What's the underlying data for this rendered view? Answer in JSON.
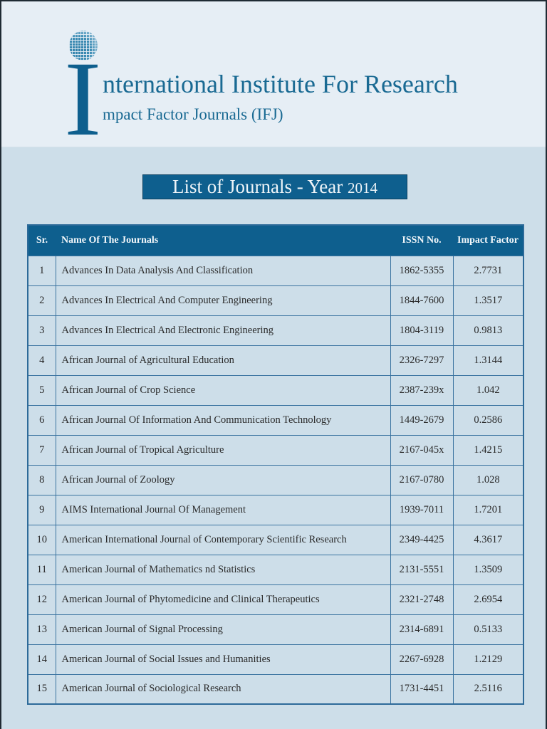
{
  "header": {
    "logo_letter": "I",
    "title_main": "nternational Institute For Research",
    "title_sub": "mpact Factor Journals (IFJ)",
    "logo_icon": "globe-icon",
    "colors": {
      "brand_blue": "#0e5f8e",
      "header_bg": "#e6eef5",
      "page_bg": "#cddee9"
    }
  },
  "list_title": {
    "text": "List of Journals - Year ",
    "year": "2014"
  },
  "table": {
    "columns": [
      "Sr.",
      "Name Of The Journals",
      "ISSN No.",
      "Impact Factor"
    ],
    "rows": [
      {
        "sr": "1",
        "name": "Advances In Data Analysis And Classification",
        "issn": "1862-5355",
        "impact": "2.7731"
      },
      {
        "sr": "2",
        "name": "Advances In Electrical And Computer Engineering",
        "issn": "1844-7600",
        "impact": "1.3517"
      },
      {
        "sr": "3",
        "name": "Advances In Electrical And Electronic Engineering",
        "issn": "1804-3119",
        "impact": "0.9813"
      },
      {
        "sr": "4",
        "name": "African Journal of Agricultural Education",
        "issn": "2326-7297",
        "impact": "1.3144"
      },
      {
        "sr": "5",
        "name": "African Journal of Crop Science",
        "issn": "2387-239x",
        "impact": "1.042"
      },
      {
        "sr": "6",
        "name": "African Journal Of Information And Communication Technology",
        "issn": "1449-2679",
        "impact": "0.2586"
      },
      {
        "sr": "7",
        "name": "African Journal of Tropical Agriculture",
        "issn": "2167-045x",
        "impact": "1.4215"
      },
      {
        "sr": "8",
        "name": "African Journal of Zoology",
        "issn": "2167-0780",
        "impact": "1.028"
      },
      {
        "sr": "9",
        "name": "AIMS International Journal Of Management",
        "issn": "1939-7011",
        "impact": "1.7201"
      },
      {
        "sr": "10",
        "name": "American International Journal of Contemporary Scientific Research",
        "issn": "2349-4425",
        "impact": "4.3617"
      },
      {
        "sr": "11",
        "name": "American Journal of Mathematics nd Statistics",
        "issn": "2131-5551",
        "impact": "1.3509"
      },
      {
        "sr": "12",
        "name": "American Journal of Phytomedicine and Clinical Therapeutics",
        "issn": "2321-2748",
        "impact": "2.6954"
      },
      {
        "sr": "13",
        "name": "American Journal of Signal Processing",
        "issn": "2314-6891",
        "impact": "0.5133"
      },
      {
        "sr": "14",
        "name": "American Journal of Social Issues and Humanities",
        "issn": "2267-6928",
        "impact": "1.2129"
      },
      {
        "sr": "15",
        "name": "American Journal of Sociological Research",
        "issn": "1731-4451",
        "impact": "2.5116"
      }
    ]
  }
}
